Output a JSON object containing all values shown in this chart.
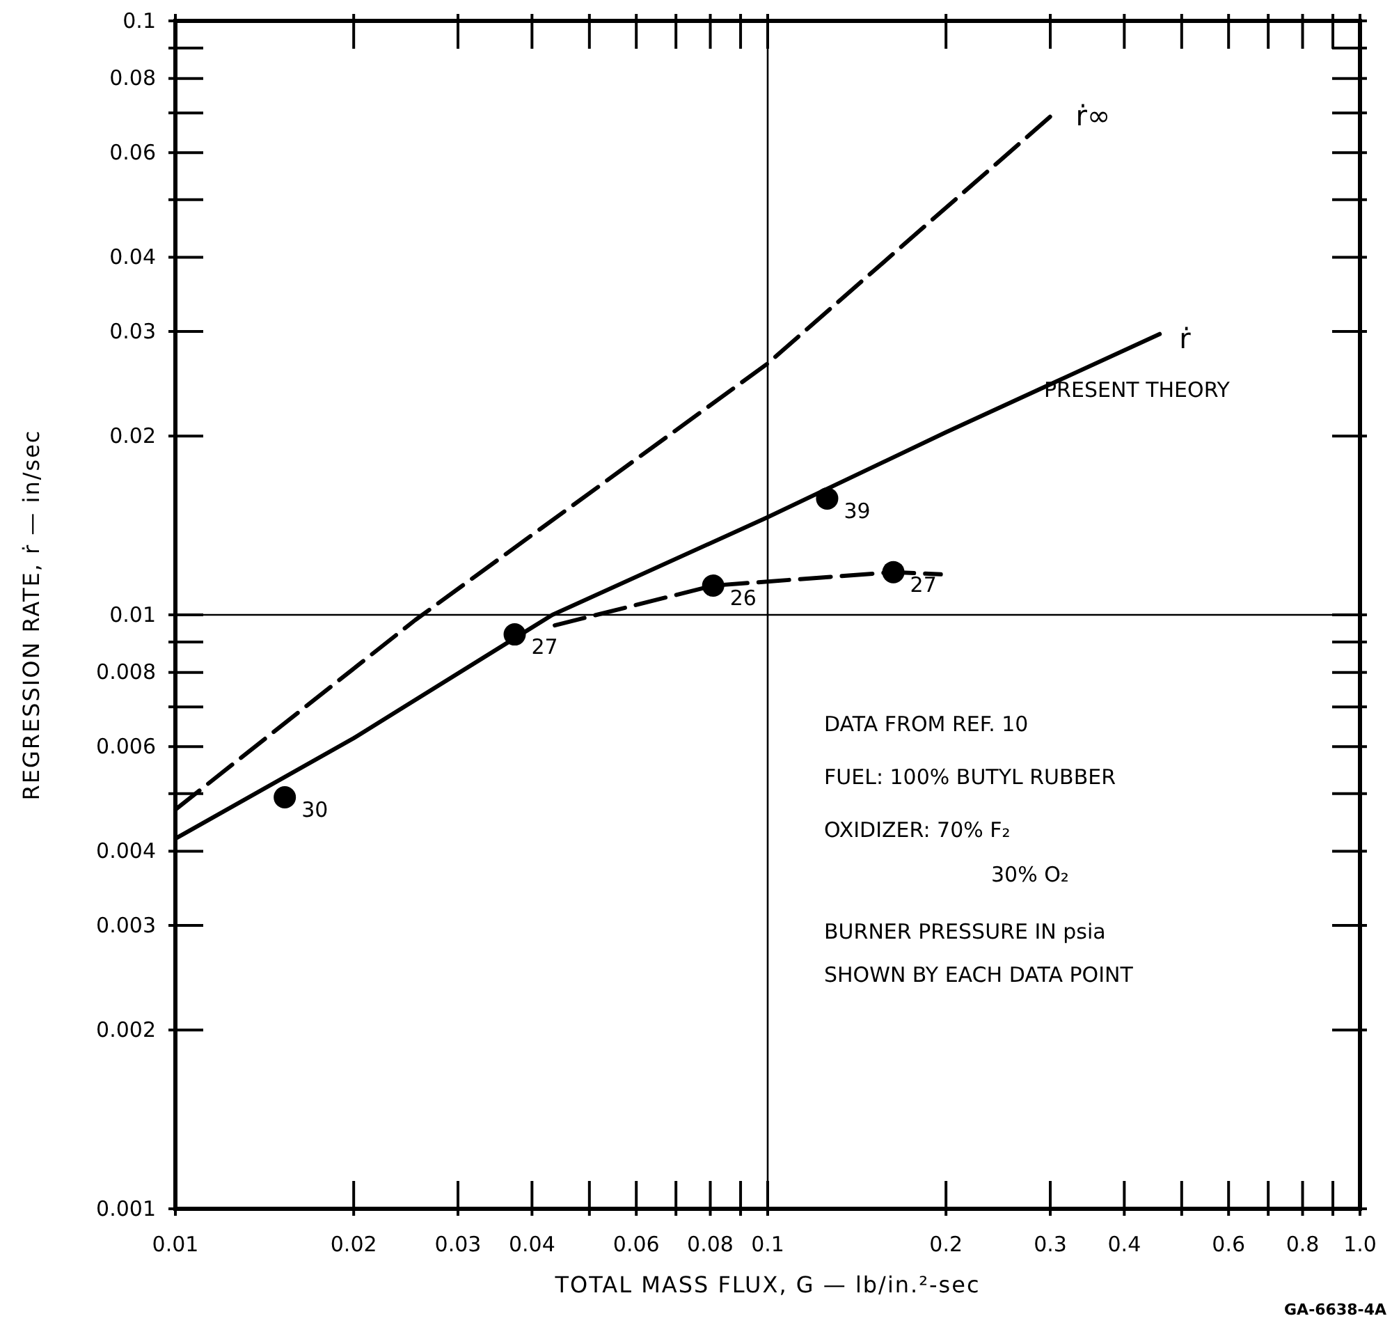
{
  "chart_data": {
    "type": "line",
    "xlabel": "TOTAL MASS FLUX, G — lb/in.²-sec",
    "ylabel": "REGRESSION RATE, ṙ — in/sec",
    "log": "xy",
    "xlim": [
      0.01,
      1.0
    ],
    "ylim": [
      0.001,
      0.1
    ],
    "xticks": [
      0.01,
      0.02,
      0.03,
      0.04,
      {
        "value": 0.05,
        "label": null
      },
      0.06,
      {
        "value": 0.07,
        "label": null
      },
      0.08,
      {
        "value": 0.09,
        "label": null
      },
      0.1,
      0.2,
      0.3,
      0.4,
      {
        "value": 0.5,
        "label": null
      },
      0.6,
      {
        "value": 0.7,
        "label": null
      },
      0.8,
      {
        "value": 0.9,
        "label": null
      },
      {
        "value": 1.0,
        "label": "1.0"
      }
    ],
    "yticks": [
      0.001,
      0.002,
      0.003,
      0.004,
      {
        "value": 0.005,
        "label": null
      },
      0.006,
      {
        "value": 0.007,
        "label": null
      },
      0.008,
      {
        "value": 0.009,
        "label": null
      },
      0.01,
      0.02,
      0.03,
      0.04,
      {
        "value": 0.05,
        "label": null
      },
      0.06,
      {
        "value": 0.07,
        "label": null
      },
      0.08,
      {
        "value": 0.09,
        "label": null
      },
      0.1
    ],
    "grid": false,
    "ref_lines": [
      {
        "axis": "y",
        "value": 0.01,
        "color": "#000000",
        "line_style": "solid"
      },
      {
        "axis": "x",
        "value": 0.1,
        "color": "#000000",
        "line_style": "solid"
      }
    ],
    "series": [
      {
        "name": "ṙ∞",
        "type": "line",
        "color": "#000000",
        "line_style": "dashed",
        "marker": "none",
        "x": [
          0.01,
          0.0254,
          0.1,
          0.307
        ],
        "values": [
          0.0047,
          0.0098,
          0.0265,
          0.0704
        ]
      },
      {
        "name": "ṙ",
        "type": "line",
        "color": "#000000",
        "line_style": "solid",
        "marker": "none",
        "x": [
          0.01,
          0.02,
          0.0433,
          0.1,
          0.2,
          0.459
        ],
        "values": [
          0.0042,
          0.0062,
          0.01,
          0.0146,
          0.0203,
          0.0297
        ]
      },
      {
        "type": "line",
        "color": "#000000",
        "line_style": "dashed",
        "marker": "none",
        "x": [
          0.0437,
          0.0809,
          0.163,
          0.196
        ],
        "values": [
          0.0096,
          0.0112,
          0.0118,
          0.0117
        ]
      },
      {
        "type": "scatter",
        "color": "#000000",
        "marker": "circle",
        "x": [
          0.0153,
          0.0374,
          0.0809,
          0.126,
          0.163
        ],
        "values": [
          0.00493,
          0.00927,
          0.0112,
          0.0157,
          0.0118
        ]
      }
    ],
    "annotations": [
      {
        "text": "30",
        "x": 0.0153,
        "y": 0.00493
      },
      {
        "text": "27",
        "x": 0.0374,
        "y": 0.00927
      },
      {
        "text": "26",
        "x": 0.0809,
        "y": 0.0112
      },
      {
        "text": "39",
        "x": 0.126,
        "y": 0.0157
      },
      {
        "text": "27",
        "x": 0.163,
        "y": 0.0118
      },
      "PRESENT THEORY",
      "DATA FROM REF. 10",
      "FUEL: 100% BUTYL RUBBER",
      "OXIDIZER: 70% F₂",
      "30% O₂",
      "BURNER PRESSURE IN psia",
      "SHOWN BY EACH DATA POINT",
      "GA-6638-4A"
    ]
  }
}
